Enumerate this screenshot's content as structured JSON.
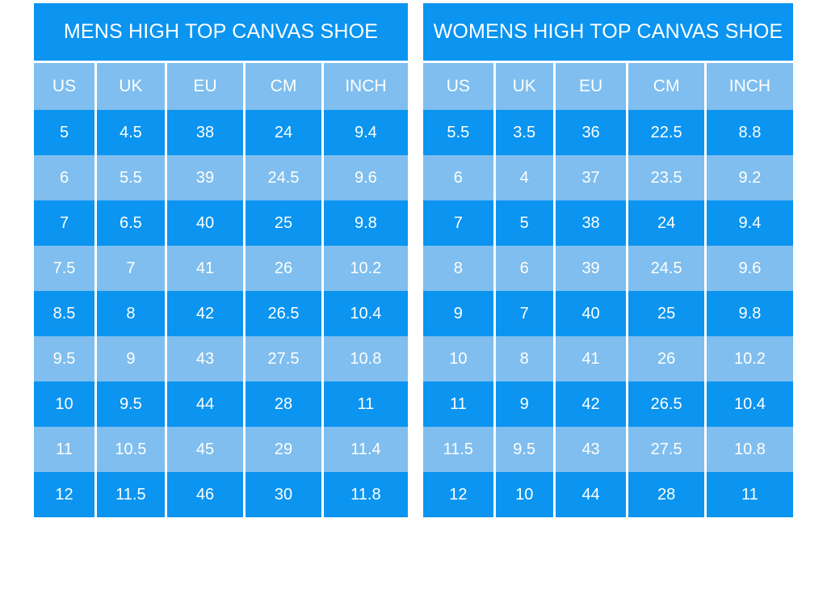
{
  "colors": {
    "primary": "#0b94f0",
    "secondary": "#7fbeee",
    "divider": "#ffffff",
    "text": "#ffffff",
    "background": "#ffffff"
  },
  "chart_data": [
    {
      "type": "table",
      "title": "MENS HIGH TOP CANVAS SHOE",
      "columns": [
        "US",
        "UK",
        "EU",
        "CM",
        "INCH"
      ],
      "rows": [
        [
          "5",
          "4.5",
          "38",
          "24",
          "9.4"
        ],
        [
          "6",
          "5.5",
          "39",
          "24.5",
          "9.6"
        ],
        [
          "7",
          "6.5",
          "40",
          "25",
          "9.8"
        ],
        [
          "7.5",
          "7",
          "41",
          "26",
          "10.2"
        ],
        [
          "8.5",
          "8",
          "42",
          "26.5",
          "10.4"
        ],
        [
          "9.5",
          "9",
          "43",
          "27.5",
          "10.8"
        ],
        [
          "10",
          "9.5",
          "44",
          "28",
          "11"
        ],
        [
          "11",
          "10.5",
          "45",
          "29",
          "11.4"
        ],
        [
          "12",
          "11.5",
          "46",
          "30",
          "11.8"
        ]
      ]
    },
    {
      "type": "table",
      "title": "WOMENS HIGH TOP CANVAS SHOE",
      "columns": [
        "US",
        "UK",
        "EU",
        "CM",
        "INCH"
      ],
      "rows": [
        [
          "5.5",
          "3.5",
          "36",
          "22.5",
          "8.8"
        ],
        [
          "6",
          "4",
          "37",
          "23.5",
          "9.2"
        ],
        [
          "7",
          "5",
          "38",
          "24",
          "9.4"
        ],
        [
          "8",
          "6",
          "39",
          "24.5",
          "9.6"
        ],
        [
          "9",
          "7",
          "40",
          "25",
          "9.8"
        ],
        [
          "10",
          "8",
          "41",
          "26",
          "10.2"
        ],
        [
          "11",
          "9",
          "42",
          "26.5",
          "10.4"
        ],
        [
          "11.5",
          "9.5",
          "43",
          "27.5",
          "10.8"
        ],
        [
          "12",
          "10",
          "44",
          "28",
          "11"
        ]
      ]
    }
  ]
}
